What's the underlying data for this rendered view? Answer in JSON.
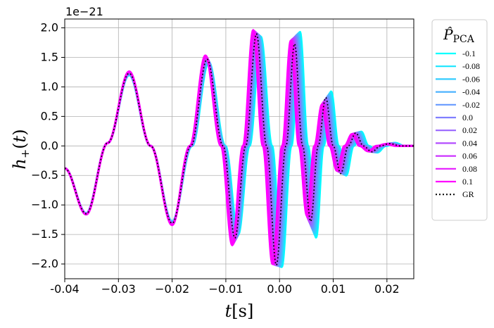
{
  "chart_data": {
    "type": "line",
    "xlabel": "t[s]",
    "ylabel": "h+(t)",
    "y_offset_label": "1e−21",
    "xlim": [
      -0.04,
      0.025
    ],
    "ylim": [
      -2.25,
      2.15
    ],
    "grid": true,
    "x_ticks": [
      -0.04,
      -0.03,
      -0.02,
      -0.01,
      0.0,
      0.01,
      0.02
    ],
    "x_tick_labels": [
      "-0.04",
      "−0.03",
      "−0.02",
      "−0.01",
      "0.00",
      "0.01",
      "0.02"
    ],
    "y_ticks": [
      2.0,
      1.5,
      1.0,
      0.5,
      0.0,
      -0.5,
      -1.0,
      -1.5,
      -2.0
    ],
    "y_tick_labels": [
      "2.0",
      "1.5",
      "1.0",
      "0.5",
      "0.0",
      "−0.5",
      "−1.0",
      "−1.5",
      "−2.0"
    ],
    "legend": {
      "title": "P̂PCA",
      "placement": "outside-upper-right",
      "entries": [
        {
          "label": "-0.1",
          "color": "#00ffff"
        },
        {
          "label": "-0.08",
          "color": "#19e6ff"
        },
        {
          "label": "-0.06",
          "color": "#33ccff"
        },
        {
          "label": "-0.04",
          "color": "#4db3ff"
        },
        {
          "label": "-0.02",
          "color": "#6699ff"
        },
        {
          "label": "0.0",
          "color": "#807fff"
        },
        {
          "label": "0.02",
          "color": "#9966ff"
        },
        {
          "label": "0.04",
          "color": "#b34cff"
        },
        {
          "label": "0.06",
          "color": "#cc33ff"
        },
        {
          "label": "0.08",
          "color": "#e619ff"
        },
        {
          "label": "0.1",
          "color": "#ff00ff"
        },
        {
          "label": "GR",
          "color": "#000000",
          "style": "dotted"
        }
      ]
    },
    "series": [
      {
        "name": "GR",
        "color": "#000000",
        "style": "dotted",
        "x": [
          -0.04,
          -0.036,
          -0.032,
          -0.028,
          -0.024,
          -0.02,
          -0.0165,
          -0.0135,
          -0.0105,
          -0.0083,
          -0.0063,
          -0.0043,
          -0.0024,
          -0.0006,
          0.0012,
          0.0028,
          0.0043,
          0.0058,
          0.0072,
          0.0086,
          0.01,
          0.0114,
          0.0128,
          0.0142,
          0.0156,
          0.0172,
          0.0188,
          0.0205,
          0.0225,
          0.025
        ],
        "y": [
          -0.38,
          -1.15,
          0.05,
          1.23,
          0.0,
          -1.31,
          0.0,
          1.47,
          0.0,
          -1.56,
          0.0,
          1.9,
          0.0,
          -2.02,
          0.0,
          1.73,
          0.0,
          -1.28,
          0.0,
          0.82,
          0.0,
          -0.47,
          0.0,
          0.22,
          0.0,
          -0.1,
          0.0,
          0.04,
          0.0,
          0.0
        ]
      },
      {
        "name": "-0.1",
        "color": "#00ffff",
        "x": [
          -0.04,
          -0.036,
          -0.032,
          -0.028,
          -0.024,
          -0.02,
          -0.0163,
          -0.0132,
          -0.0101,
          -0.0077,
          -0.0056,
          -0.0035,
          -0.0014,
          0.0004,
          0.0022,
          0.0038,
          0.0053,
          0.0068,
          0.0082,
          0.0096,
          0.011,
          0.0124,
          0.0138,
          0.0152,
          0.0166,
          0.0182,
          0.0198,
          0.0215,
          0.0233,
          0.025
        ],
        "y": [
          -0.38,
          -1.14,
          0.05,
          1.2,
          0.0,
          -1.28,
          0.0,
          1.42,
          0.0,
          -1.5,
          0.0,
          1.85,
          0.0,
          -2.05,
          0.0,
          1.93,
          0.0,
          -1.55,
          0.0,
          0.92,
          0.0,
          -0.5,
          0.0,
          0.24,
          0.0,
          -0.11,
          0.0,
          0.05,
          0.0,
          0.0
        ]
      },
      {
        "name": "0.1",
        "color": "#ff00ff",
        "x": [
          -0.04,
          -0.036,
          -0.032,
          -0.028,
          -0.024,
          -0.02,
          -0.0167,
          -0.0138,
          -0.0109,
          -0.0088,
          -0.0068,
          -0.0049,
          -0.0031,
          -0.0013,
          0.0005,
          0.0021,
          0.0036,
          0.0051,
          0.0065,
          0.0079,
          0.0093,
          0.0107,
          0.0121,
          0.0135,
          0.0149,
          0.0165,
          0.0181,
          0.0198,
          0.0218,
          0.025
        ],
        "y": [
          -0.38,
          -1.16,
          0.05,
          1.26,
          0.0,
          -1.34,
          0.0,
          1.53,
          0.0,
          -1.68,
          0.0,
          1.96,
          0.0,
          -2.0,
          0.0,
          1.78,
          0.0,
          -1.18,
          0.0,
          0.7,
          0.0,
          -0.42,
          0.0,
          0.2,
          0.0,
          -0.09,
          0.0,
          0.03,
          0.0,
          0.0
        ]
      }
    ]
  }
}
